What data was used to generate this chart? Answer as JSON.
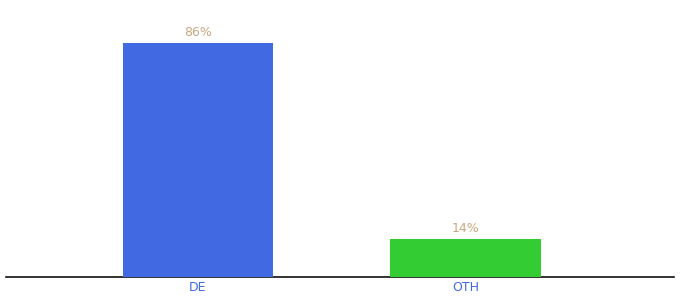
{
  "categories": [
    "DE",
    "OTH"
  ],
  "values": [
    86,
    14
  ],
  "bar_colors": [
    "#4169e1",
    "#33cc33"
  ],
  "label_texts": [
    "86%",
    "14%"
  ],
  "label_color": "#c8a882",
  "tick_color": "#4169e1",
  "background_color": "#ffffff",
  "ylim": [
    0,
    100
  ],
  "bar_width": 0.18,
  "figsize": [
    6.8,
    3.0
  ],
  "dpi": 100,
  "label_fontsize": 9,
  "tick_fontsize": 9,
  "x_positions": [
    0.28,
    0.6
  ]
}
